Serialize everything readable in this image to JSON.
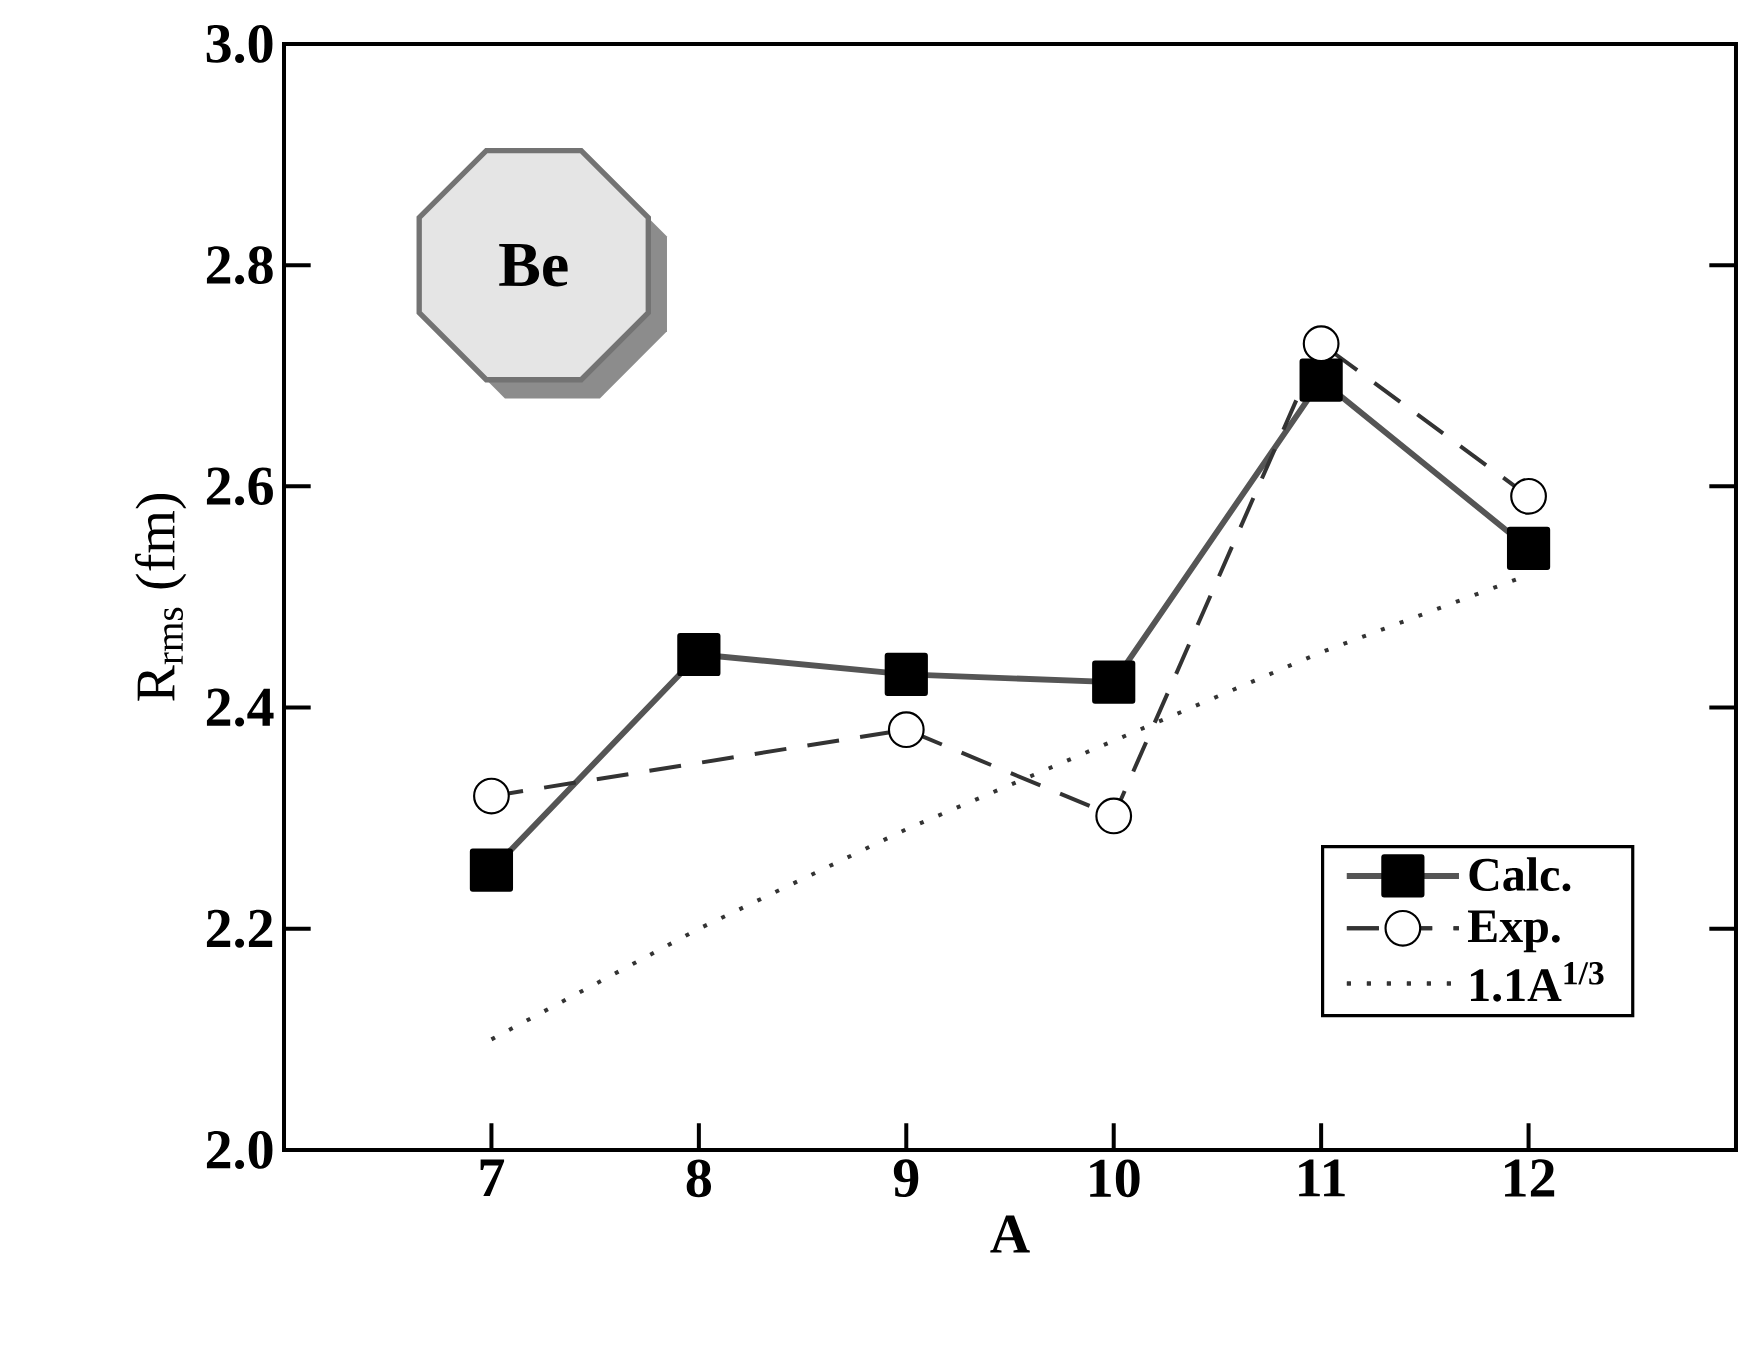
{
  "chart_data": {
    "type": "line",
    "xlabel": "A",
    "ylabel": "R$_{rms}$ (fm)",
    "x": [
      7,
      8,
      9,
      10,
      11,
      12
    ],
    "series": [
      {
        "name": "Calc.",
        "color": "#555555",
        "marker": "square",
        "line_style": "solid",
        "values": [
          2.253,
          2.448,
          2.43,
          2.423,
          2.696,
          2.544
        ]
      },
      {
        "name": "Exp.",
        "color": "#333333",
        "marker": "circle",
        "line_style": "dashed",
        "x": [
          7,
          9,
          10,
          11,
          12
        ],
        "values": [
          2.32,
          2.38,
          2.302,
          2.729,
          2.591
        ]
      },
      {
        "name": "1.1A$^{1/3}$",
        "color": "#333333",
        "marker": "none",
        "line_style": "dotted",
        "values": [
          2.1,
          2.2,
          2.29,
          2.37,
          2.45,
          2.52
        ]
      }
    ],
    "xlim": [
      6,
      13
    ],
    "ylim": [
      2.0,
      3.0
    ],
    "xticks": [
      7,
      8,
      9,
      10,
      11,
      12
    ],
    "yticks": [
      {
        "value": 2.0,
        "label": "2.0"
      },
      {
        "value": 2.2,
        "label": "2.2"
      },
      {
        "value": 2.4,
        "label": "2.4"
      },
      {
        "value": 2.6,
        "label": "2.6"
      },
      {
        "value": 2.8,
        "label": "2.8"
      },
      {
        "value": 3.0,
        "label": "3.0"
      }
    ],
    "legend": "bottom right",
    "grid": false,
    "annotations": [
      "Be"
    ]
  }
}
